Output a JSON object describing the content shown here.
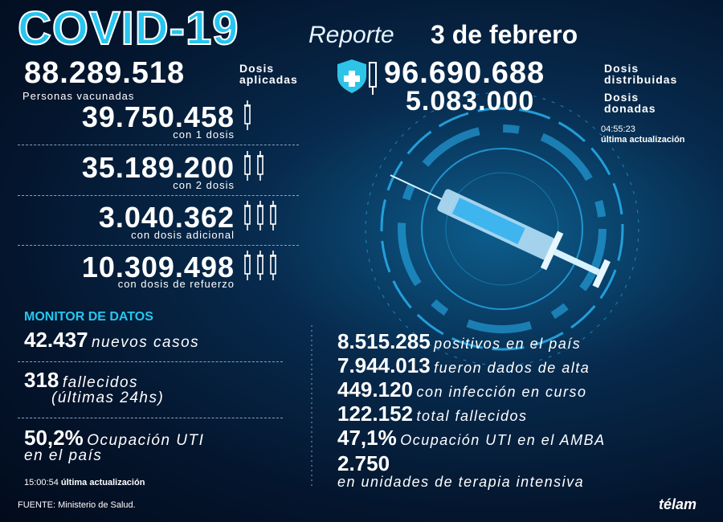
{
  "header": {
    "title": "COVID-19",
    "report_label": "Reporte",
    "date": "3 de febrero"
  },
  "vaccination": {
    "applied": {
      "value": "88.289.518",
      "label_1": "Dosis",
      "label_2": "aplicadas"
    },
    "distributed": {
      "value": "96.690.688",
      "label_1": "Dosis",
      "label_2": "distribuidas"
    },
    "donated": {
      "value": "5.083.000",
      "label_1": "Dosis",
      "label_2": "donadas"
    },
    "update_time": "04:55:23",
    "update_label": "última actualización",
    "people_label": "Personas vacunadas",
    "doses": [
      {
        "value": "39.750.458",
        "label": "con 1 dosis"
      },
      {
        "value": "35.189.200",
        "label": "con 2 dosis"
      },
      {
        "value": "3.040.362",
        "label": "con dosis adicional"
      },
      {
        "value": "10.309.498",
        "label": "con dosis de refuerzo"
      }
    ]
  },
  "monitor": {
    "title": "MONITOR DE DATOS",
    "left": [
      {
        "value": "42.437",
        "text": "nuevos casos"
      },
      {
        "value": "318",
        "text": "fallecidos",
        "text_2": "(últimas 24hs)"
      },
      {
        "value": "50,2%",
        "text": "Ocupación UTI",
        "text_2": "en el país"
      }
    ],
    "update_time": "15:00:54",
    "update_label": "última actualización",
    "right": [
      {
        "value": "8.515.285",
        "text": "positivos en el país"
      },
      {
        "value": "7.944.013",
        "text": "fueron dados de alta"
      },
      {
        "value": "449.120",
        "text": "con infección en curso"
      },
      {
        "value": "122.152",
        "text": "total fallecidos"
      },
      {
        "value": "47,1%",
        "text": "Ocupación UTI en el AMBA"
      },
      {
        "value": "2.750",
        "text": "en unidades de terapia intensiva"
      }
    ]
  },
  "footer": {
    "source": "FUENTE: Ministerio de Salud.",
    "brand": "télam"
  }
}
